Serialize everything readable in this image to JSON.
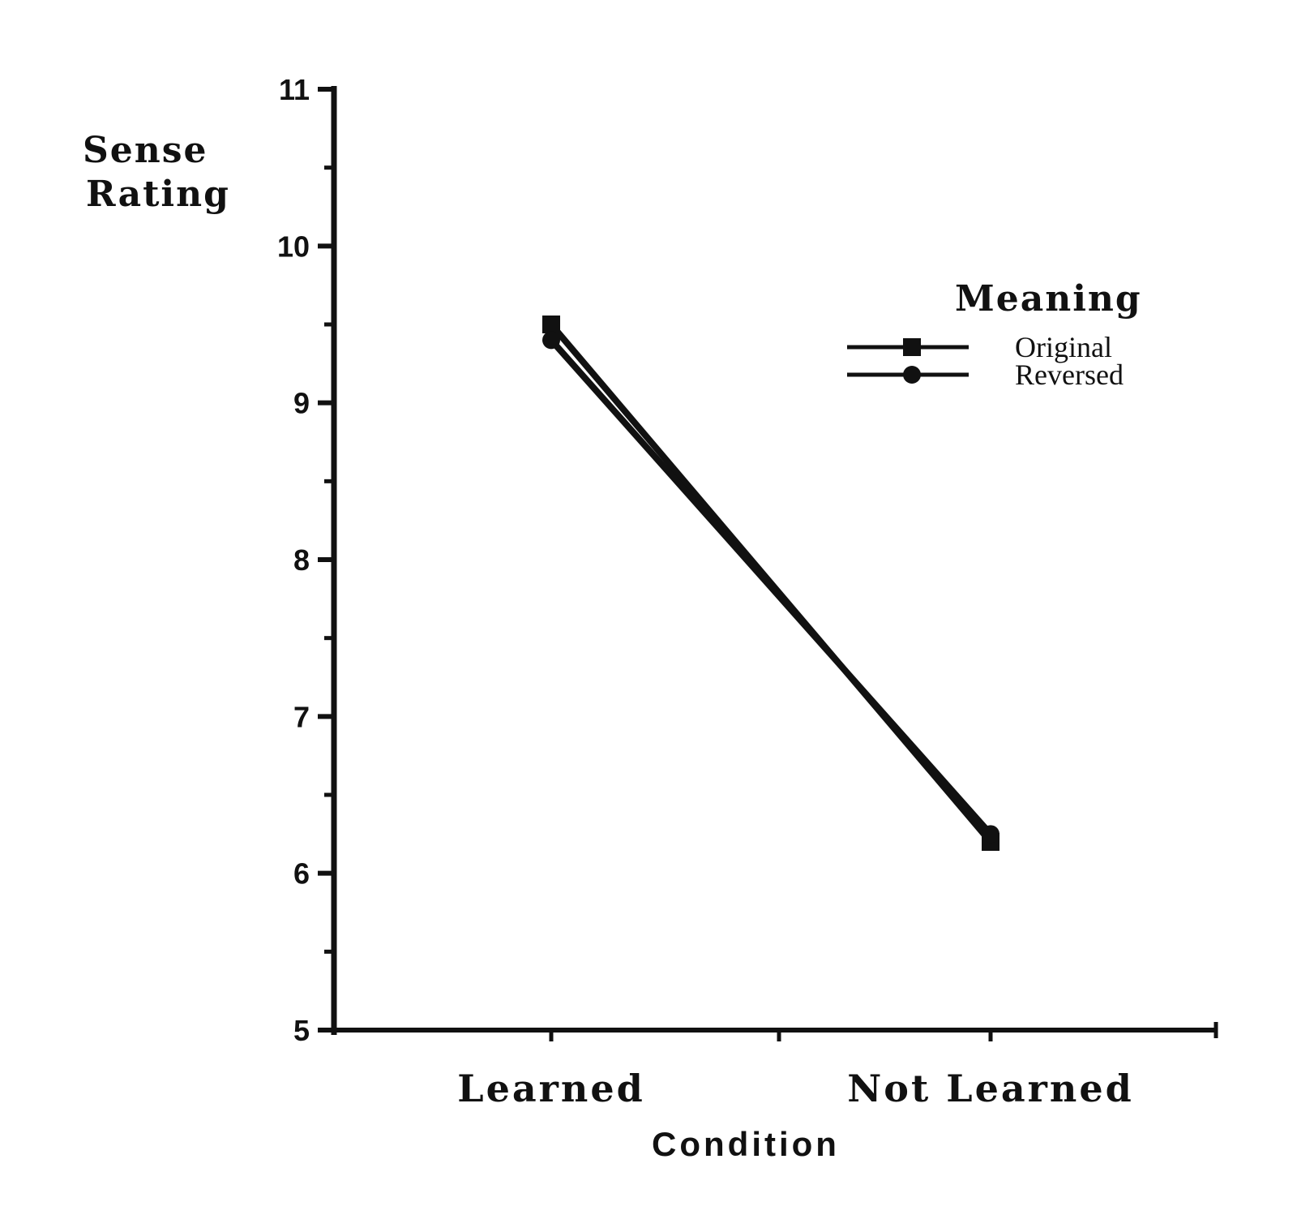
{
  "chart_data": {
    "type": "line",
    "title": "",
    "xlabel": "Condition",
    "ylabel_lines": [
      "Sense",
      "Rating"
    ],
    "categories": [
      "Learned",
      "Not Learned"
    ],
    "ylim": [
      5,
      11
    ],
    "yticks": [
      5,
      6,
      7,
      8,
      9,
      10,
      11
    ],
    "ytick_labels": [
      "5",
      "6",
      "7",
      "8",
      "9",
      "10",
      "11"
    ],
    "grid": false,
    "legend": {
      "title": "Meaning",
      "placement": "top-right"
    },
    "series": [
      {
        "name": "Original",
        "values": [
          9.5,
          6.2
        ],
        "marker": "square",
        "color": "#111111"
      },
      {
        "name": "Reversed",
        "values": [
          9.4,
          6.25
        ],
        "marker": "circle",
        "color": "#111111"
      }
    ]
  }
}
